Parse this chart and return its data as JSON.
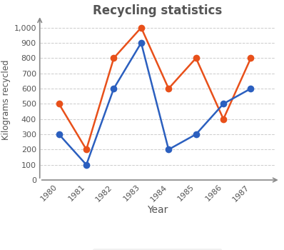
{
  "title": "Recycling statistics",
  "xlabel": "Year",
  "ylabel": "Kilograms recycled",
  "years": [
    1980,
    1981,
    1982,
    1983,
    1984,
    1985,
    1986,
    1987
  ],
  "aluminum": [
    500,
    200,
    800,
    1000,
    600,
    800,
    400,
    800
  ],
  "batteries": [
    300,
    100,
    600,
    900,
    200,
    300,
    500,
    600
  ],
  "aluminum_color": "#E8501A",
  "batteries_color": "#2B5FBF",
  "ylim": [
    0,
    1050
  ],
  "yticks": [
    0,
    100,
    200,
    300,
    400,
    500,
    600,
    700,
    800,
    900,
    1000
  ],
  "ytick_labels": [
    "0",
    "100",
    "200",
    "300",
    "400",
    "500",
    "600",
    "700",
    "800",
    "900",
    "1,000"
  ],
  "background_color": "#ffffff",
  "plot_bg_color": "#ffffff",
  "grid_color": "#cccccc",
  "title_color": "#555555",
  "axis_color": "#888888",
  "tick_color": "#555555",
  "marker_size": 7,
  "linewidth": 1.8,
  "legend_bg": "#eeeeee"
}
